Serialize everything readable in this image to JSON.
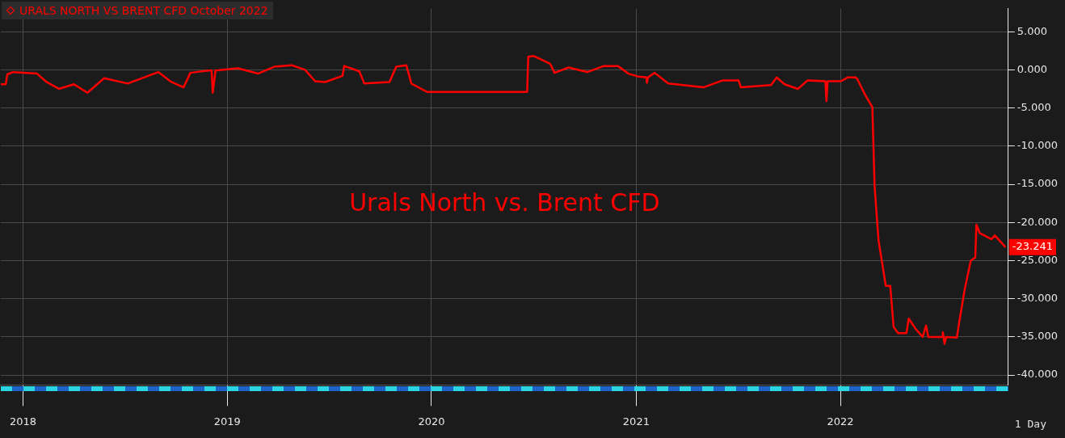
{
  "chart_data": {
    "type": "line",
    "title": "URALS NORTH VS BRENT CFD October 2022",
    "annotations": [
      "Urals North vs. Brent CFD",
      "1 Day",
      {
        "text": "-23.241",
        "x": "2022-10-23",
        "y": -23.241
      }
    ],
    "x": [
      "2017-11-22",
      "2017-12-01",
      "2017-12-04",
      "2017-12-14",
      "2018-01-26",
      "2018-02-12",
      "2018-03-06",
      "2018-04-02",
      "2018-04-26",
      "2018-05-26",
      "2018-07-07",
      "2018-08-31",
      "2018-09-23",
      "2018-10-15",
      "2018-10-27",
      "2018-11-29",
      "2018-12-04",
      "2018-12-06",
      "2018-12-11",
      "2019-01-20",
      "2019-02-25",
      "2019-03-26",
      "2019-04-26",
      "2019-05-20",
      "2019-06-07",
      "2019-06-25",
      "2019-07-26",
      "2019-07-29",
      "2019-08-25",
      "2019-09-03",
      "2019-10-18",
      "2019-10-30",
      "2019-11-17",
      "2019-11-26",
      "2019-12-24",
      "2020-06-20",
      "2020-06-22",
      "2020-07-02",
      "2020-07-31",
      "2020-08-08",
      "2020-09-02",
      "2020-10-06",
      "2020-11-04",
      "2020-11-29",
      "2020-12-18",
      "2021-01-05",
      "2021-01-19",
      "2021-01-20",
      "2021-01-22",
      "2021-02-03",
      "2021-02-27",
      "2021-05-01",
      "2021-06-04",
      "2021-07-03",
      "2021-07-07",
      "2021-08-30",
      "2021-09-09",
      "2021-09-23",
      "2021-10-17",
      "2021-11-03",
      "2021-12-05",
      "2021-12-07",
      "2021-12-09",
      "2022-01-02",
      "2022-01-14",
      "2022-01-28",
      "2022-01-31",
      "2022-02-15",
      "2022-02-27",
      "2022-03-03",
      "2022-03-10",
      "2022-03-23",
      "2022-03-31",
      "2022-04-06",
      "2022-04-14",
      "2022-04-29",
      "2022-05-03",
      "2022-05-16",
      "2022-05-28",
      "2022-06-03",
      "2022-06-07",
      "2022-07-02",
      "2022-07-03",
      "2022-07-06",
      "2022-07-09",
      "2022-07-28",
      "2022-08-01",
      "2022-08-11",
      "2022-08-22",
      "2022-08-30",
      "2022-09-01",
      "2022-09-07",
      "2022-09-28",
      "2022-10-04",
      "2022-10-23"
    ],
    "series": [
      {
        "color": "#ff0000",
        "values": [
          -1.9,
          -1.9,
          -0.6,
          -0.3,
          -0.5,
          -1.6,
          -2.5,
          -1.9,
          -3.0,
          -1.1,
          -1.8,
          -0.3,
          -1.6,
          -2.3,
          -0.4,
          -0.1,
          -0.1,
          -3.0,
          -0.1,
          0.2,
          -0.5,
          0.4,
          0.6,
          0.0,
          -1.5,
          -1.6,
          -0.8,
          0.5,
          -0.2,
          -1.8,
          -1.6,
          0.4,
          0.6,
          -1.8,
          -2.9,
          -2.9,
          1.7,
          1.8,
          0.8,
          -0.4,
          0.3,
          -0.3,
          0.5,
          0.5,
          -0.5,
          -0.9,
          -1.0,
          -1.7,
          -1.0,
          -0.4,
          -1.8,
          -2.3,
          -1.4,
          -1.4,
          -2.3,
          -2.0,
          -1.0,
          -1.9,
          -2.5,
          -1.4,
          -1.5,
          -4.1,
          -1.5,
          -1.5,
          -1.0,
          -1.0,
          -1.2,
          -3.4,
          -4.9,
          -15.2,
          -22.3,
          -28.3,
          -28.3,
          -33.7,
          -34.5,
          -34.5,
          -32.6,
          -34.0,
          -35.0,
          -33.5,
          -35.0,
          -35.0,
          -34.4,
          -35.9,
          -35.0,
          -35.1,
          -33.2,
          -28.8,
          -25.0,
          -24.6,
          -20.3,
          -21.4,
          -22.2,
          -21.7,
          -23.241
        ]
      }
    ],
    "xlim": [
      "2017-11-22",
      "2022-10-28"
    ],
    "xticks": [
      {
        "value": "2018-01-01",
        "label": "2018"
      },
      {
        "value": "2019-01-01",
        "label": "2019"
      },
      {
        "value": "2020-01-01",
        "label": "2020"
      },
      {
        "value": "2021-01-01",
        "label": "2021"
      },
      {
        "value": "2022-01-01",
        "label": "2022"
      }
    ],
    "ylim": [
      -41.3,
      8
    ],
    "yticks": [
      {
        "value": 5,
        "label": "5.000"
      },
      {
        "value": 0,
        "label": "0.000"
      },
      {
        "value": -5,
        "label": "-5.000"
      },
      {
        "value": -10,
        "label": "-10.000"
      },
      {
        "value": -15,
        "label": "-15.000"
      },
      {
        "value": -20,
        "label": "-20.000"
      },
      {
        "value": -25,
        "label": "-25.000"
      },
      {
        "value": -30,
        "label": "-30.000"
      },
      {
        "value": -35,
        "label": "-35.000"
      },
      {
        "value": -40,
        "label": "-40.000"
      }
    ],
    "grid": true,
    "legend": false,
    "marker": "none",
    "line_style": "solid"
  }
}
